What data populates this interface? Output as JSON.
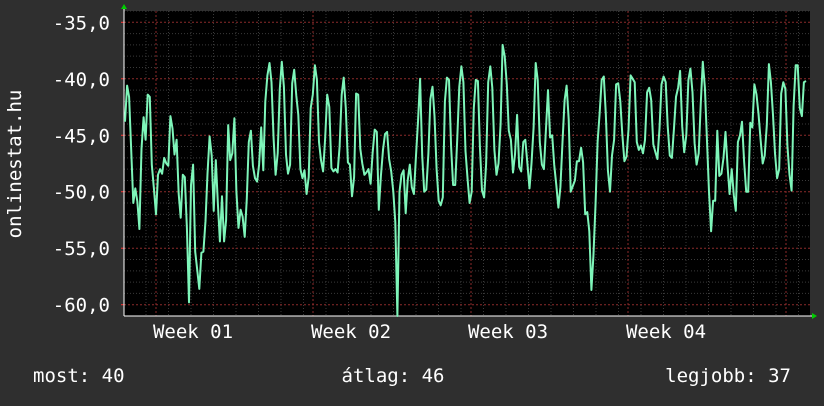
{
  "colors": {
    "background": "#2f2f2f",
    "plot_background": "#000000",
    "series": "#7ef5b9",
    "text": "#ffffff",
    "grid_major": "#8b2a2a",
    "grid_minor": "#3a3a3a",
    "arrow": "#00cc00"
  },
  "footer": [
    {
      "text": "most: 40"
    },
    {
      "text": "átlag: 46"
    },
    {
      "text": "legjobb: 37"
    }
  ],
  "chart_data": {
    "type": "line",
    "ylabel": "onlinestat.hu",
    "ylim": [
      -61,
      -34
    ],
    "yticks": [
      "-35,0",
      "-40,0",
      "-45,0",
      "-50,0",
      "-55,0",
      "-60,0"
    ],
    "ytick_values": [
      -35,
      -40,
      -45,
      -50,
      -55,
      -60
    ],
    "xticks": [
      "Week 01",
      "Week 02",
      "Week 03",
      "Week 04"
    ],
    "grid": true,
    "series": [
      {
        "values": [
          -43.8,
          -40.6,
          -41.6,
          -46.3,
          -51.0,
          -49.7,
          -50.9,
          -53.3,
          -46.2,
          -43.4,
          -45.4,
          -41.4,
          -41.6,
          -47.6,
          -49.7,
          -52.0,
          -48.5,
          -48.0,
          -48.4,
          -47.0,
          -47.5,
          -47.7,
          -43.3,
          -44.4,
          -46.7,
          -45.4,
          -50.2,
          -52.3,
          -48.5,
          -48.7,
          -53.2,
          -59.8,
          -49.4,
          -47.6,
          -55.3,
          -56.9,
          -58.6,
          -55.4,
          -55.3,
          -52.6,
          -48.4,
          -45.1,
          -46.8,
          -51.7,
          -47.2,
          -51.1,
          -54.4,
          -50.4,
          -54.4,
          -52.5,
          -44.1,
          -47.2,
          -46.6,
          -43.5,
          -50.0,
          -53.2,
          -51.6,
          -52.2,
          -54.0,
          -50.6,
          -45.6,
          -44.6,
          -47.7,
          -48.8,
          -49.1,
          -47.6,
          -44.3,
          -48.1,
          -42.0,
          -39.7,
          -38.6,
          -40.3,
          -45.3,
          -48.5,
          -46.6,
          -40.9,
          -38.5,
          -40.7,
          -46.7,
          -48.4,
          -47.6,
          -40.4,
          -39.2,
          -41.5,
          -43.2,
          -48.0,
          -48.8,
          -48.1,
          -50.2,
          -48.7,
          -42.6,
          -41.4,
          -38.8,
          -40.1,
          -45.6,
          -47.2,
          -48.2,
          -45.2,
          -41.4,
          -42.5,
          -47.9,
          -48.2,
          -48.0,
          -48.3,
          -46.0,
          -41.4,
          -39.9,
          -42.6,
          -47.4,
          -47.6,
          -50.4,
          -48.7,
          -41.3,
          -41.4,
          -46.2,
          -47.5,
          -48.5,
          -48.3,
          -48.0,
          -49.3,
          -46.6,
          -44.5,
          -44.7,
          -51.6,
          -48.6,
          -46.3,
          -44.9,
          -44.7,
          -47.1,
          -48.2,
          -50.0,
          -52.7,
          -61.0,
          -50.0,
          -48.5,
          -48.1,
          -51.9,
          -49.0,
          -47.6,
          -49.6,
          -50.2,
          -46.8,
          -43.8,
          -40.0,
          -46.8,
          -50.0,
          -49.8,
          -46.6,
          -41.8,
          -40.7,
          -43.3,
          -48.0,
          -50.8,
          -51.2,
          -50.5,
          -42.0,
          -39.9,
          -40.1,
          -46.0,
          -49.4,
          -49.4,
          -45.4,
          -40.7,
          -38.9,
          -40.3,
          -46.4,
          -48.9,
          -51.0,
          -50.0,
          -42.6,
          -40.1,
          -40.2,
          -46.0,
          -49.9,
          -50.5,
          -47.6,
          -40.3,
          -38.9,
          -40.8,
          -46.3,
          -48.5,
          -47.5,
          -44.0,
          -37.0,
          -38.0,
          -40.5,
          -44.6,
          -45.4,
          -48.3,
          -46.7,
          -43.2,
          -47.8,
          -48.2,
          -45.6,
          -45.4,
          -47.5,
          -49.7,
          -47.5,
          -44.3,
          -38.6,
          -40.1,
          -45.6,
          -47.6,
          -48.0,
          -44.4,
          -41.0,
          -45.2,
          -45.0,
          -47.6,
          -49.4,
          -51.4,
          -49.6,
          -45.6,
          -41.9,
          -40.6,
          -43.6,
          -50.0,
          -49.5,
          -49.0,
          -47.3,
          -47.3,
          -46.1,
          -47.4,
          -52.0,
          -51.8,
          -53.5,
          -58.7,
          -55.7,
          -51.2,
          -45.6,
          -43.1,
          -40.1,
          -39.8,
          -43.1,
          -48.1,
          -50.0,
          -46.8,
          -45.4,
          -40.5,
          -40.4,
          -42.0,
          -44.9,
          -47.3,
          -46.9,
          -44.5,
          -39.7,
          -40.0,
          -40.3,
          -45.6,
          -46.3,
          -45.9,
          -46.6,
          -45.4,
          -41.2,
          -40.8,
          -41.9,
          -45.8,
          -46.5,
          -47.1,
          -44.4,
          -40.5,
          -39.8,
          -40.3,
          -44.2,
          -46.8,
          -47.0,
          -44.5,
          -41.6,
          -40.8,
          -39.3,
          -44.2,
          -46.5,
          -45.0,
          -40.1,
          -39.1,
          -41.2,
          -45.7,
          -47.6,
          -46.6,
          -42.1,
          -38.5,
          -40.8,
          -45.3,
          -50.0,
          -53.5,
          -50.8,
          -50.8,
          -44.6,
          -48.6,
          -48.4,
          -47.0,
          -44.7,
          -47.8,
          -50.2,
          -48.0,
          -50.3,
          -51.7,
          -45.6,
          -45.0,
          -43.8,
          -47.3,
          -50.0,
          -50.0,
          -43.9,
          -44.3,
          -40.5,
          -41.4,
          -43.1,
          -45.4,
          -47.5,
          -46.8,
          -44.1,
          -38.7,
          -40.3,
          -43.2,
          -46.6,
          -48.8,
          -48.0,
          -41.3,
          -40.3,
          -40.9,
          -45.9,
          -48.5,
          -49.9,
          -42.4,
          -38.8,
          -38.8,
          -42.6,
          -43.3,
          -40.3,
          -40.2
        ]
      }
    ]
  }
}
